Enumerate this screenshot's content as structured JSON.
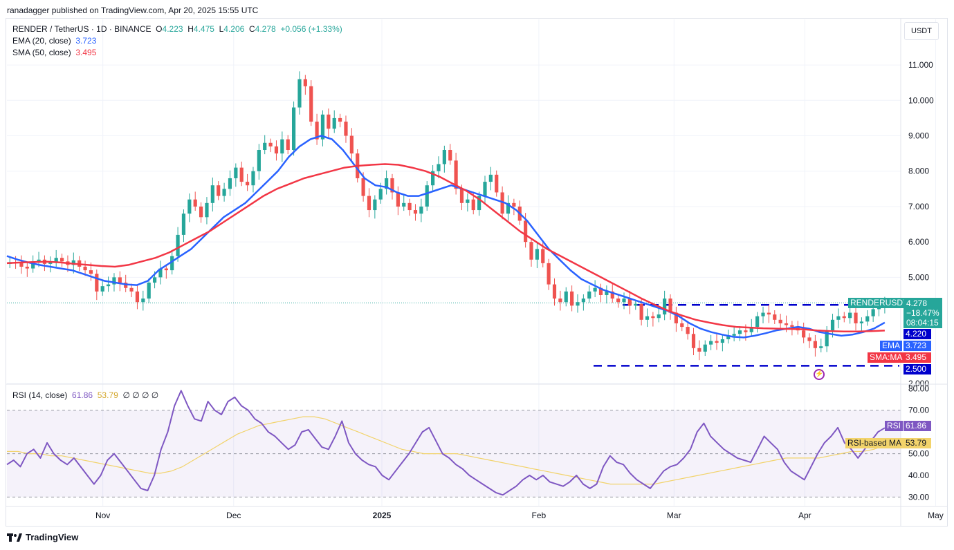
{
  "header": {
    "published": "ranadagger published on TradingView.com, Apr 20, 2025 15:55 UTC"
  },
  "legend": {
    "symbol": "RENDER / TetherUS · 1D · BINANCE",
    "o_label": "O",
    "o": "4.223",
    "h_label": "H",
    "h": "4.475",
    "l_label": "L",
    "l": "4.206",
    "c_label": "C",
    "c": "4.278",
    "change": "+0.056 (+1.33%)",
    "ema_label": "EMA (20, close)",
    "ema_value": "3.723",
    "sma_label": "SMA (50, close)",
    "sma_value": "3.495",
    "rsi_label": "RSI (14, close)",
    "rsi_value": "61.86",
    "rsi_ma_value": "53.79",
    "rsi_extra": "∅ ∅ ∅ ∅"
  },
  "currency": "USDT",
  "price_tags": {
    "symbol": "RENDERUSDT",
    "last": "4.278",
    "pct": "−18.47%",
    "countdown": "08:04:15",
    "level_high": "4.220",
    "ema_label": "EMA",
    "ema": "3.723",
    "sma_label": "SMA:MA",
    "sma": "3.495",
    "level_low": "2.500"
  },
  "rsi_tags": {
    "rsi_label": "RSI",
    "rsi": "61.86",
    "ma_label": "RSI-based MA",
    "ma": "53.79"
  },
  "branding": "TradingView",
  "colors": {
    "up": "#26a69a",
    "down": "#ef5350",
    "ema": "#2962ff",
    "sma": "#f23645",
    "rsi": "#7e57c2",
    "rsi_ma": "#f2d36b",
    "level": "#0000cc"
  },
  "chart_data": {
    "type": "candlestick",
    "title": "RENDER / TetherUS · 1D · BINANCE",
    "price_axis": {
      "ticks": [
        "11.000",
        "10.000",
        "9.000",
        "8.000",
        "7.000",
        "6.000",
        "5.000",
        "2.000"
      ],
      "tick_values": [
        11,
        10,
        9,
        8,
        7,
        6,
        5,
        2
      ],
      "range": [
        2.0,
        11.9
      ]
    },
    "rsi_axis": {
      "ticks": [
        "80.00",
        "70.00",
        "50.00",
        "40.00",
        "30.00"
      ],
      "tick_values": [
        80,
        70,
        50,
        40,
        30
      ],
      "range": [
        26,
        82
      ],
      "band": [
        30,
        70
      ]
    },
    "x_axis": {
      "labels": [
        "Nov",
        "Dec",
        "2025",
        "Feb",
        "Mar",
        "Apr",
        "May"
      ],
      "label_days": [
        22,
        52,
        86,
        122,
        153,
        183,
        213
      ],
      "days": [
        0,
        205
      ]
    },
    "horizontal_levels": [
      4.22,
      2.5
    ],
    "candles_close": [
      5.43,
      5.4,
      5.3,
      5.25,
      5.45,
      5.5,
      5.38,
      5.42,
      5.55,
      5.45,
      5.35,
      5.48,
      5.3,
      5.2,
      5.1,
      4.6,
      4.75,
      4.8,
      5.0,
      4.85,
      4.7,
      4.6,
      4.3,
      4.4,
      4.85,
      5.0,
      5.25,
      5.2,
      5.6,
      6.2,
      6.8,
      7.2,
      7.0,
      6.7,
      7.1,
      7.6,
      7.3,
      7.5,
      7.8,
      8.1,
      7.7,
      7.6,
      8.0,
      8.6,
      8.8,
      8.7,
      8.5,
      8.9,
      8.6,
      9.8,
      10.6,
      10.4,
      9.4,
      8.9,
      9.6,
      9.2,
      9.5,
      9.4,
      9.0,
      8.5,
      7.8,
      7.3,
      6.9,
      7.2,
      7.5,
      7.8,
      7.4,
      7.0,
      7.1,
      6.9,
      6.8,
      7.0,
      7.6,
      8.0,
      8.2,
      8.6,
      8.3,
      7.5,
      7.1,
      7.2,
      6.9,
      7.3,
      7.7,
      7.9,
      7.4,
      6.8,
      7.1,
      7.0,
      6.6,
      6.0,
      5.5,
      5.8,
      5.4,
      4.8,
      4.4,
      4.3,
      4.6,
      4.2,
      4.3,
      4.4,
      4.6,
      4.7,
      4.5,
      4.6,
      4.4,
      4.3,
      4.4,
      4.2,
      4.25,
      3.8,
      3.9,
      3.85,
      3.95,
      4.4,
      4.0,
      3.7,
      3.6,
      3.4,
      3.0,
      2.9,
      3.1,
      3.2,
      3.15,
      3.25,
      3.35,
      3.4,
      3.5,
      3.45,
      3.6,
      3.9,
      4.0,
      3.95,
      3.8,
      3.7,
      3.65,
      3.6,
      3.5,
      3.3,
      3.2,
      3.0,
      3.05,
      3.5,
      3.8,
      3.9,
      3.85,
      4.0,
      3.7,
      3.75,
      3.9,
      4.1,
      4.22,
      4.278
    ],
    "ema20": [
      5.6,
      5.5,
      5.42,
      5.35,
      5.3,
      5.25,
      5.2,
      5.1,
      5.0,
      4.9,
      4.85,
      4.8,
      4.78,
      4.9,
      5.2,
      5.4,
      5.6,
      5.8,
      6.1,
      6.4,
      6.7,
      6.9,
      7.1,
      7.4,
      7.7,
      8.0,
      8.4,
      8.7,
      8.9,
      9.0,
      8.9,
      8.6,
      8.2,
      7.8,
      7.6,
      7.55,
      7.4,
      7.3,
      7.3,
      7.4,
      7.5,
      7.6,
      7.5,
      7.4,
      7.3,
      7.2,
      7.1,
      6.9,
      6.6,
      6.2,
      5.8,
      5.5,
      5.2,
      4.95,
      4.8,
      4.65,
      4.55,
      4.45,
      4.35,
      4.25,
      4.15,
      4.05,
      3.9,
      3.7,
      3.55,
      3.45,
      3.38,
      3.32,
      3.3,
      3.35,
      3.42,
      3.5,
      3.55,
      3.6,
      3.55,
      3.45,
      3.4,
      3.35,
      3.38,
      3.45,
      3.55,
      3.723
    ],
    "sma50": [
      5.4,
      5.42,
      5.43,
      5.44,
      5.42,
      5.38,
      5.35,
      5.32,
      5.3,
      5.35,
      5.45,
      5.55,
      5.7,
      5.9,
      6.1,
      6.3,
      6.55,
      6.8,
      7.05,
      7.3,
      7.5,
      7.65,
      7.8,
      7.9,
      8.0,
      8.1,
      8.15,
      8.18,
      8.2,
      8.18,
      8.1,
      8.0,
      7.85,
      7.65,
      7.45,
      7.2,
      6.9,
      6.6,
      6.3,
      6.05,
      5.8,
      5.6,
      5.4,
      5.2,
      5.0,
      4.8,
      4.6,
      4.4,
      4.22,
      4.05,
      3.92,
      3.8,
      3.72,
      3.65,
      3.6,
      3.58,
      3.56,
      3.55,
      3.54,
      3.53,
      3.5,
      3.48,
      3.47,
      3.47,
      3.48,
      3.495
    ],
    "rsi": [
      45,
      47,
      44,
      50,
      52,
      48,
      55,
      50,
      47,
      45,
      48,
      44,
      40,
      36,
      40,
      47,
      50,
      46,
      42,
      38,
      34,
      33,
      40,
      52,
      60,
      72,
      79,
      72,
      66,
      65,
      74,
      70,
      68,
      74,
      76,
      72,
      70,
      66,
      64,
      60,
      58,
      55,
      52,
      54,
      60,
      61,
      57,
      53,
      52,
      58,
      65,
      55,
      50,
      47,
      45,
      44,
      40,
      38,
      42,
      46,
      50,
      55,
      60,
      62,
      56,
      50,
      48,
      45,
      43,
      40,
      38,
      36,
      34,
      32,
      31,
      33,
      35,
      38,
      40,
      38,
      40,
      37,
      36,
      35,
      37,
      40,
      36,
      34,
      36,
      44,
      49,
      46,
      45,
      41,
      38,
      36,
      34,
      38,
      42,
      44,
      45,
      48,
      52,
      60,
      64,
      58,
      55,
      52,
      50,
      48,
      47,
      46,
      52,
      58,
      55,
      52,
      46,
      42,
      40,
      38,
      44,
      50,
      55,
      58,
      62,
      55,
      52,
      48,
      52,
      56,
      60,
      61.86
    ],
    "rsi_ma": [
      51,
      51,
      50,
      50,
      49,
      49,
      48,
      47,
      46,
      45,
      44,
      43,
      42,
      41,
      41,
      42,
      44,
      47,
      50,
      53,
      56,
      59,
      61,
      63,
      64,
      65,
      66,
      67,
      67,
      66,
      64,
      62,
      60,
      58,
      56,
      54,
      52,
      51,
      50,
      50,
      50,
      50,
      49,
      48,
      47,
      46,
      45,
      44,
      43,
      42,
      41,
      40,
      39,
      38,
      37,
      36,
      36,
      36,
      36,
      36,
      37,
      38,
      39,
      40,
      41,
      42,
      43,
      44,
      45,
      46,
      47,
      48,
      48,
      48,
      48,
      49,
      50,
      51,
      51,
      52,
      53.79
    ]
  }
}
